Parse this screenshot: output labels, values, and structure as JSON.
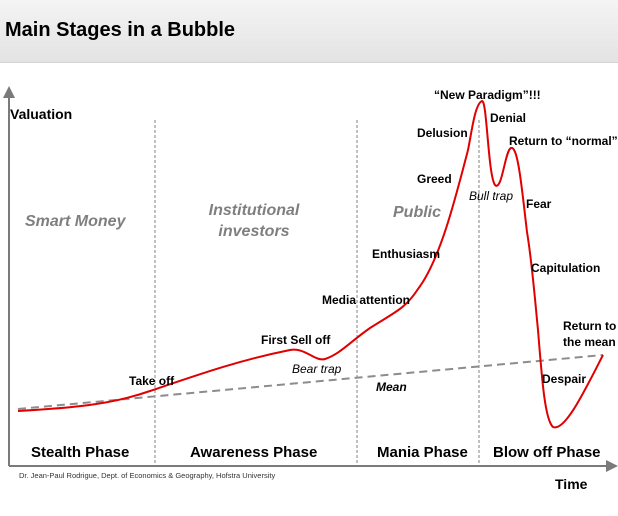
{
  "title": "Main Stages in a Bubble",
  "axes": {
    "y_label": "Valuation",
    "x_label": "Time"
  },
  "actors": {
    "smart_money": "Smart Money",
    "institutional": "Institutional investors",
    "public": "Public"
  },
  "phases": {
    "stealth": "Stealth Phase",
    "awareness": "Awareness Phase",
    "mania": "Mania Phase",
    "blowoff": "Blow off Phase"
  },
  "events": {
    "take_off": "Take off",
    "first_sell_off": "First Sell off",
    "bear_trap": "Bear trap",
    "mean": "Mean",
    "media_attention": "Media attention",
    "enthusiasm": "Enthusiasm",
    "greed": "Greed",
    "delusion": "Delusion",
    "new_paradigm": "“New Paradigm”!!!",
    "denial": "Denial",
    "bull_trap": "Bull trap",
    "return_to_normal": "Return to “normal”",
    "fear": "Fear",
    "capitulation": "Capitulation",
    "despair": "Despair",
    "return_to_mean": "Return to the mean"
  },
  "credit": "Dr. Jean-Paul Rodrigue, Dept. of Economics & Geography, Hofstra University",
  "colors": {
    "curve": "#e00000",
    "mean_line": "#8c8c8c",
    "phase_divider": "#808080",
    "actor_text": "#7f7f7f"
  }
}
